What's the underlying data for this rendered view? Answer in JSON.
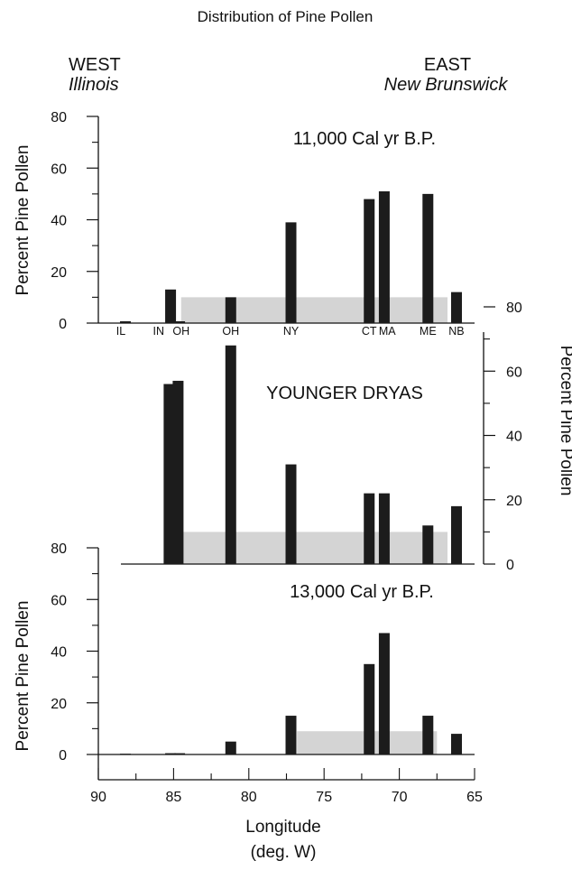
{
  "page": {
    "title": "Distribution of Pine Pollen",
    "west_label": "WEST",
    "west_sub": "Illinois",
    "east_label": "EAST",
    "east_sub": "New Brunswick",
    "x_axis_label": "Longitude",
    "x_axis_unit": "(deg. W)"
  },
  "colors": {
    "bar": "#1c1c1c",
    "band": "#d4d4d4",
    "axis": "#111111"
  },
  "chart_data": [
    {
      "type": "bar",
      "panel": "top",
      "title": "11,000 Cal yr B.P.",
      "ylabel": "Percent Pine Pollen",
      "y_axis_side": "left",
      "ylim": [
        0,
        80
      ],
      "yticks": [
        0,
        20,
        40,
        60,
        80
      ],
      "xlim": [
        90,
        65
      ],
      "reversed_x": true,
      "band": {
        "x_from": 84.5,
        "x_to": 66.8,
        "y_from": 0,
        "y_to": 10
      },
      "site_labels": [
        {
          "text": "IL",
          "x": 88.5
        },
        {
          "text": "IN",
          "x": 86.0
        },
        {
          "text": "OH",
          "x": 84.5
        },
        {
          "text": "OH",
          "x": 81.2
        },
        {
          "text": "NY",
          "x": 77.2
        },
        {
          "text": "CT",
          "x": 72.0
        },
        {
          "text": "MA",
          "x": 70.8
        },
        {
          "text": "ME",
          "x": 68.1
        },
        {
          "text": "NB",
          "x": 66.2
        }
      ],
      "bars": [
        {
          "x": 88.2,
          "y": 0.7
        },
        {
          "x": 85.2,
          "y": 13
        },
        {
          "x": 84.6,
          "y": 0.7
        },
        {
          "x": 81.2,
          "y": 10
        },
        {
          "x": 77.2,
          "y": 39
        },
        {
          "x": 72.0,
          "y": 48
        },
        {
          "x": 71.0,
          "y": 51
        },
        {
          "x": 68.1,
          "y": 50
        },
        {
          "x": 66.2,
          "y": 12
        }
      ]
    },
    {
      "type": "bar",
      "panel": "middle",
      "title": "YOUNGER DRYAS",
      "ylabel": "Percent Pine Pollen",
      "y_axis_side": "right",
      "ylim": [
        0,
        80
      ],
      "yticks": [
        0,
        20,
        40,
        60,
        80
      ],
      "xlim": [
        90,
        65
      ],
      "reversed_x": true,
      "band": {
        "x_from": 84.5,
        "x_to": 66.8,
        "y_from": 0,
        "y_to": 10
      },
      "bars": [
        {
          "x": 85.3,
          "y": 56
        },
        {
          "x": 84.7,
          "y": 57
        },
        {
          "x": 81.2,
          "y": 68
        },
        {
          "x": 77.2,
          "y": 31
        },
        {
          "x": 72.0,
          "y": 22
        },
        {
          "x": 71.0,
          "y": 22
        },
        {
          "x": 68.1,
          "y": 12
        },
        {
          "x": 66.2,
          "y": 18
        }
      ]
    },
    {
      "type": "bar",
      "panel": "bottom",
      "title": "13,000 Cal yr B.P.",
      "ylabel": "Percent Pine Pollen",
      "xlabel": "Longitude",
      "y_axis_side": "left",
      "ylim": [
        0,
        80
      ],
      "yticks": [
        0,
        20,
        40,
        60,
        80
      ],
      "xlim": [
        90,
        65
      ],
      "xticks": [
        90,
        85,
        80,
        75,
        70,
        65
      ],
      "reversed_x": true,
      "band": {
        "x_from": 76.8,
        "x_to": 67.5,
        "y_from": 0,
        "y_to": 9
      },
      "bars": [
        {
          "x": 88.2,
          "y": 0.3
        },
        {
          "x": 85.2,
          "y": 0.5
        },
        {
          "x": 84.6,
          "y": 0.5
        },
        {
          "x": 81.2,
          "y": 5
        },
        {
          "x": 77.2,
          "y": 15
        },
        {
          "x": 72.0,
          "y": 35
        },
        {
          "x": 71.0,
          "y": 47
        },
        {
          "x": 68.1,
          "y": 15
        },
        {
          "x": 66.2,
          "y": 8
        }
      ]
    }
  ]
}
